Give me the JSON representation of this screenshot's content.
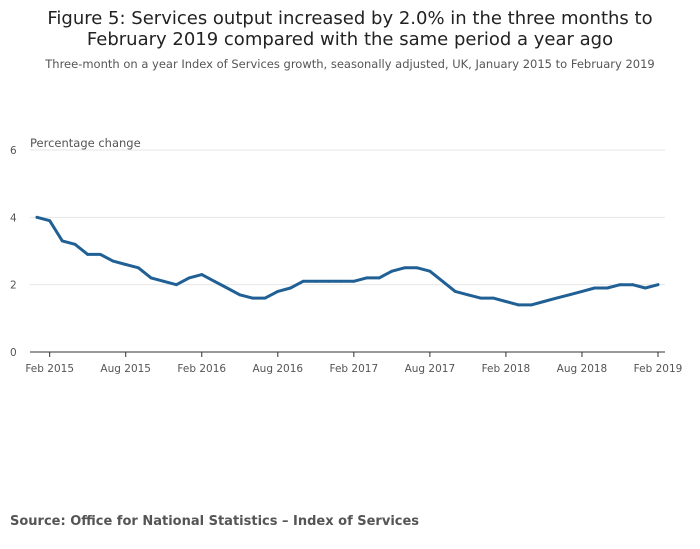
{
  "page": {
    "title": "Figure 5: Services output increased by 2.0% in the three months to February 2019 compared with the same period a year ago",
    "subtitle": "Three-month on a year Index of Services growth, seasonally adjusted, UK, January 2015 to February 2019",
    "source": "Source: Office for National Statistics – Index of Services"
  },
  "colors": {
    "line": "#206095",
    "grid": "#e6e6e6",
    "axis": "#333333"
  },
  "chart_data": {
    "type": "line",
    "title": "Figure 5: Services output increased by 2.0% in the three months to February 2019 compared with the same period a year ago",
    "ylabel": "Percentage change",
    "xlabel": "",
    "ylim": [
      0,
      6
    ],
    "yticks": [
      0,
      2,
      4,
      6
    ],
    "x": [
      "Jan 2015",
      "Feb 2015",
      "Mar 2015",
      "Apr 2015",
      "May 2015",
      "Jun 2015",
      "Jul 2015",
      "Aug 2015",
      "Sep 2015",
      "Oct 2015",
      "Nov 2015",
      "Dec 2015",
      "Jan 2016",
      "Feb 2016",
      "Mar 2016",
      "Apr 2016",
      "May 2016",
      "Jun 2016",
      "Jul 2016",
      "Aug 2016",
      "Sep 2016",
      "Oct 2016",
      "Nov 2016",
      "Dec 2016",
      "Jan 2017",
      "Feb 2017",
      "Mar 2017",
      "Apr 2017",
      "May 2017",
      "Jun 2017",
      "Jul 2017",
      "Aug 2017",
      "Sep 2017",
      "Oct 2017",
      "Nov 2017",
      "Dec 2017",
      "Jan 2018",
      "Feb 2018",
      "Mar 2018",
      "Apr 2018",
      "May 2018",
      "Jun 2018",
      "Jul 2018",
      "Aug 2018",
      "Sep 2018",
      "Oct 2018",
      "Nov 2018",
      "Dec 2018",
      "Jan 2019",
      "Feb 2019"
    ],
    "xticks": [
      {
        "index": 1,
        "label": "Feb 2015"
      },
      {
        "index": 7,
        "label": "Aug 2015"
      },
      {
        "index": 13,
        "label": "Feb 2016"
      },
      {
        "index": 19,
        "label": "Aug 2016"
      },
      {
        "index": 25,
        "label": "Feb 2017"
      },
      {
        "index": 31,
        "label": "Aug 2017"
      },
      {
        "index": 37,
        "label": "Feb 2018"
      },
      {
        "index": 43,
        "label": "Aug 2018"
      },
      {
        "index": 49,
        "label": "Feb 2019"
      }
    ],
    "series": [
      {
        "name": "Three-month on a year growth",
        "values": [
          4.0,
          3.9,
          3.3,
          3.2,
          2.9,
          2.9,
          2.7,
          2.6,
          2.5,
          2.2,
          2.1,
          2.0,
          2.2,
          2.3,
          2.1,
          1.9,
          1.7,
          1.6,
          1.6,
          1.8,
          1.9,
          2.1,
          2.1,
          2.1,
          2.1,
          2.1,
          2.2,
          2.2,
          2.4,
          2.5,
          2.5,
          2.4,
          2.1,
          1.8,
          1.7,
          1.6,
          1.6,
          1.5,
          1.4,
          1.4,
          1.5,
          1.6,
          1.7,
          1.8,
          1.9,
          1.9,
          2.0,
          2.0,
          1.9,
          2.0
        ]
      }
    ]
  }
}
